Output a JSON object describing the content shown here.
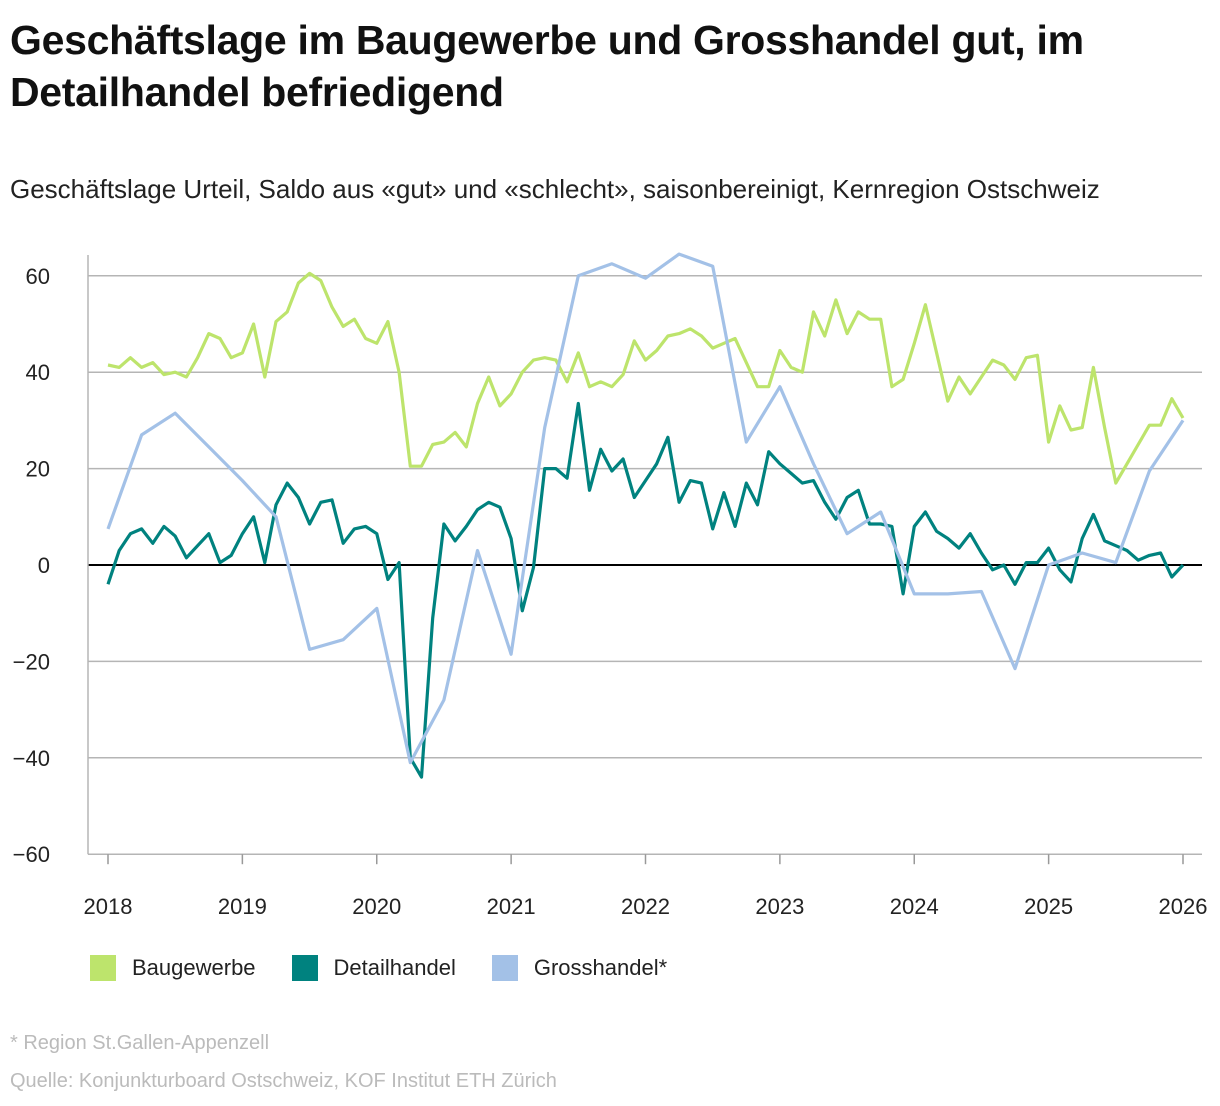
{
  "chart_data": {
    "type": "line",
    "title": "Geschäftslage im Baugewerbe und Grosshandel gut, im Detailhandel befriedigend",
    "subtitle": "Geschäftslage Urteil, Saldo aus «gut» und «schlecht», saisonbereinigt, Kernregion Ostschweiz",
    "xlabel": "",
    "ylabel": "",
    "xlim": [
      2018,
      2026
    ],
    "ylim": [
      -60,
      65
    ],
    "x_ticks": [
      "2018",
      "2019",
      "2020",
      "2021",
      "2022",
      "2023",
      "2024",
      "2025",
      "2026"
    ],
    "y_ticks": [
      60,
      40,
      20,
      0,
      -20,
      -40,
      -60
    ],
    "y_tick_labels": [
      "60",
      "40",
      "20",
      "0",
      "−20",
      "−40",
      "−60"
    ],
    "grid": true,
    "legend_position": "bottom-left",
    "series": [
      {
        "name": "Baugewerbe",
        "color": "#bde46c",
        "start": "2018-01",
        "frequency": "monthly",
        "values": [
          41.5,
          41,
          43,
          41,
          42,
          39.5,
          40,
          39,
          43,
          48,
          47,
          43,
          44,
          50,
          39,
          50.5,
          52.5,
          58.5,
          60.5,
          59,
          53.5,
          49.5,
          51,
          47,
          46,
          50.5,
          40,
          20.5,
          20.5,
          25,
          25.5,
          27.5,
          24.5,
          33.5,
          39,
          33,
          35.5,
          40,
          42.5,
          43,
          42.5,
          38,
          44,
          37,
          38,
          37,
          39.5,
          46.5,
          42.5,
          44.5,
          47.5,
          48,
          49,
          47.5,
          45,
          46,
          47,
          42,
          37,
          37,
          44.5,
          41,
          40,
          52.5,
          47.5,
          55,
          48,
          52.5,
          51,
          51,
          37,
          38.5,
          46,
          54,
          44,
          34,
          39,
          35.5,
          39,
          42.5,
          41.5,
          38.5,
          43,
          43.5,
          25.5,
          33,
          28,
          28.5,
          41,
          28.5,
          17,
          21,
          25,
          29,
          29,
          34.5,
          30.5
        ]
      },
      {
        "name": "Detailhandel",
        "color": "#00827f",
        "start": "2018-01",
        "frequency": "monthly",
        "values": [
          -4,
          3,
          6.5,
          7.5,
          4.5,
          8,
          6,
          1.5,
          4,
          6.5,
          0.5,
          2,
          6.5,
          10,
          0.5,
          12.5,
          17,
          14,
          8.5,
          13,
          13.5,
          4.5,
          7.5,
          8,
          6.5,
          -3,
          0.5,
          -40,
          -44,
          -11,
          8.5,
          5,
          8,
          11.5,
          13,
          12,
          5.5,
          -9.5,
          -0.5,
          20,
          20,
          18,
          33.5,
          15.5,
          24,
          19.5,
          22,
          14,
          17.5,
          21,
          26.5,
          13,
          17.5,
          17,
          7.5,
          15,
          8,
          17,
          12.5,
          23.5,
          21,
          19,
          17,
          17.5,
          13,
          9.5,
          14,
          15.5,
          8.5,
          8.5,
          8,
          -6,
          8,
          11,
          7,
          5.5,
          3.5,
          6.5,
          2.5,
          -1,
          0,
          -4,
          0.5,
          0.5,
          3.5,
          -1,
          -3.5,
          5.5,
          10.5,
          5,
          4,
          3,
          1,
          2,
          2.5,
          -2.5,
          0
        ]
      },
      {
        "name": "Grosshandel*",
        "color": "#a3c1e7",
        "frequency": "quarterly",
        "dates": [
          "2018-01",
          "2018-04",
          "2018-07",
          "2018-10",
          "2019-01",
          "2019-04",
          "2019-07",
          "2019-10",
          "2020-01",
          "2020-04",
          "2020-07",
          "2020-10",
          "2021-01",
          "2021-04",
          "2021-07",
          "2021-10",
          "2022-01",
          "2022-04",
          "2022-07",
          "2022-10",
          "2023-01",
          "2023-04",
          "2023-07",
          "2023-10",
          "2024-01",
          "2024-04",
          "2024-07",
          "2024-10",
          "2025-01",
          "2025-04",
          "2025-07",
          "2025-10",
          "2026-01"
        ],
        "values": [
          7.5,
          27,
          31.5,
          24.5,
          17.5,
          10,
          -17.5,
          -15.5,
          -9,
          -41,
          -28,
          3,
          -18.5,
          28.5,
          60,
          62.5,
          59.5,
          64.5,
          62,
          25.5,
          37,
          21,
          6.5,
          11,
          -6,
          -6,
          -5.5,
          -21.5,
          0,
          2.5,
          0.5,
          19.5,
          30
        ]
      }
    ]
  },
  "footnote": "* Region St.Gallen-Appenzell",
  "source": "Quelle: Konjunkturboard Ostschweiz, KOF Institut ETH Zürich"
}
